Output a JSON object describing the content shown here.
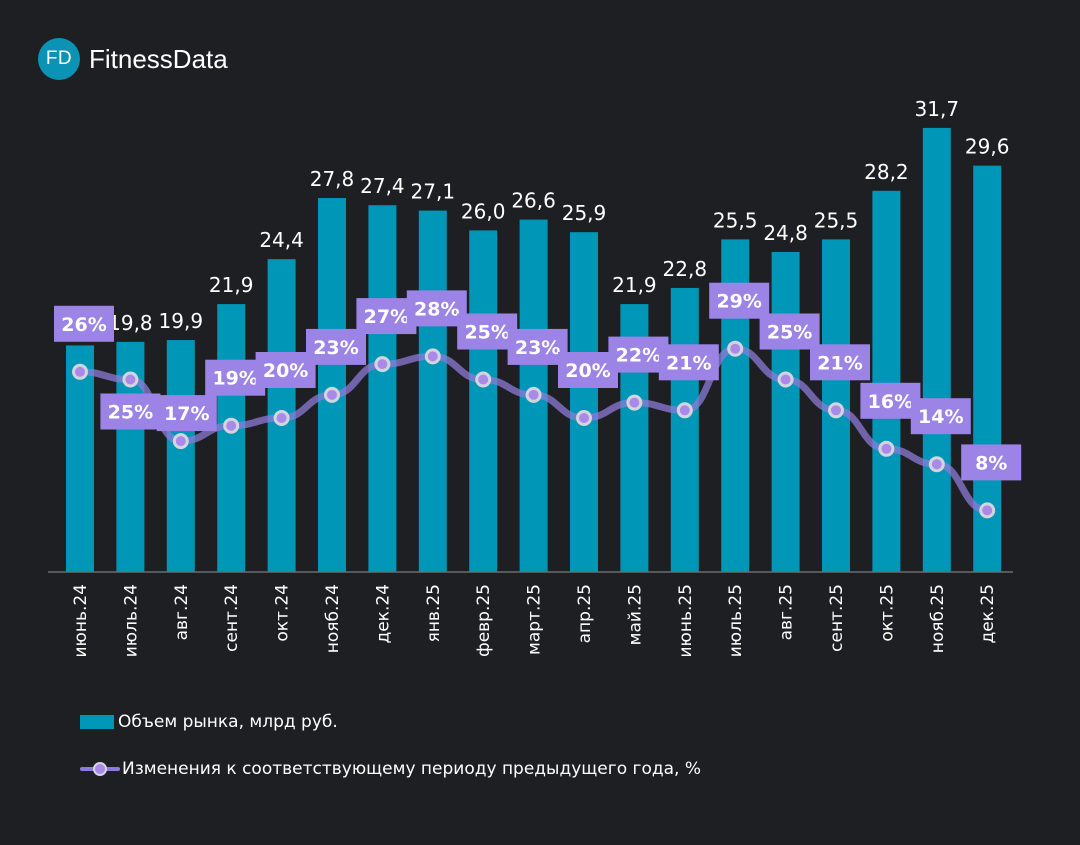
{
  "brand": {
    "badge": "FD",
    "name": "FitnessData",
    "color": "#0a93b5"
  },
  "colors": {
    "background": "#1e1f23",
    "bar": "#0096b7",
    "line": "#8c7bd8",
    "label_box": "#9b84e6",
    "marker_fill": "#a98ae8",
    "marker_stroke": "#d4d4dc"
  },
  "legend": {
    "bar_label": "Объем рынка, млрд руб.",
    "line_label": "Изменения к соответствующему периоду предыдущего года, %"
  },
  "chart_data": {
    "type": "bar",
    "title": "",
    "xlabel": "",
    "ylabel": "",
    "grid": false,
    "legend_position": "bottom-left",
    "categories": [
      "июнь.24",
      "июль.24",
      "авг.24",
      "сент.24",
      "окт.24",
      "нояб.24",
      "дек.24",
      "янв.25",
      "февр.25",
      "март.25",
      "апр.25",
      "май.25",
      "июнь.25",
      "июль.25",
      "авг.25",
      "сент.25",
      "окт.25",
      "нояб.25",
      "дек.25"
    ],
    "ylim": [
      7,
      33
    ],
    "y2lim": [
      0,
      60
    ],
    "series": [
      {
        "name": "Объем рынка, млрд руб.",
        "type": "bar",
        "values": [
          null,
          19.8,
          19.9,
          21.9,
          24.4,
          27.8,
          27.4,
          27.1,
          26.0,
          26.6,
          25.9,
          21.9,
          22.8,
          25.5,
          24.8,
          25.5,
          28.2,
          31.7,
          29.6
        ],
        "labels": [
          "",
          "19,8",
          "19,9",
          "21,9",
          "24,4",
          "27,8",
          "27,4",
          "27,1",
          "26,0",
          "26,6",
          "25,9",
          "21,9",
          "22,8",
          "25,5",
          "24,8",
          "25,5",
          "28,2",
          "31,7",
          "29,6"
        ]
      },
      {
        "name": "Изменения к соответствующему периоду предыдущего года, %",
        "type": "line",
        "axis": "secondary",
        "values": [
          26,
          25,
          17,
          19,
          20,
          23,
          27,
          28,
          25,
          23,
          20,
          22,
          21,
          29,
          25,
          21,
          16,
          14,
          8
        ],
        "labels": [
          "26%",
          "25%",
          "17%",
          "19%",
          "20%",
          "23%",
          "27%",
          "28%",
          "25%",
          "23%",
          "20%",
          "22%",
          "21%",
          "29%",
          "25%",
          "21%",
          "16%",
          "14%",
          "8%"
        ]
      }
    ]
  }
}
